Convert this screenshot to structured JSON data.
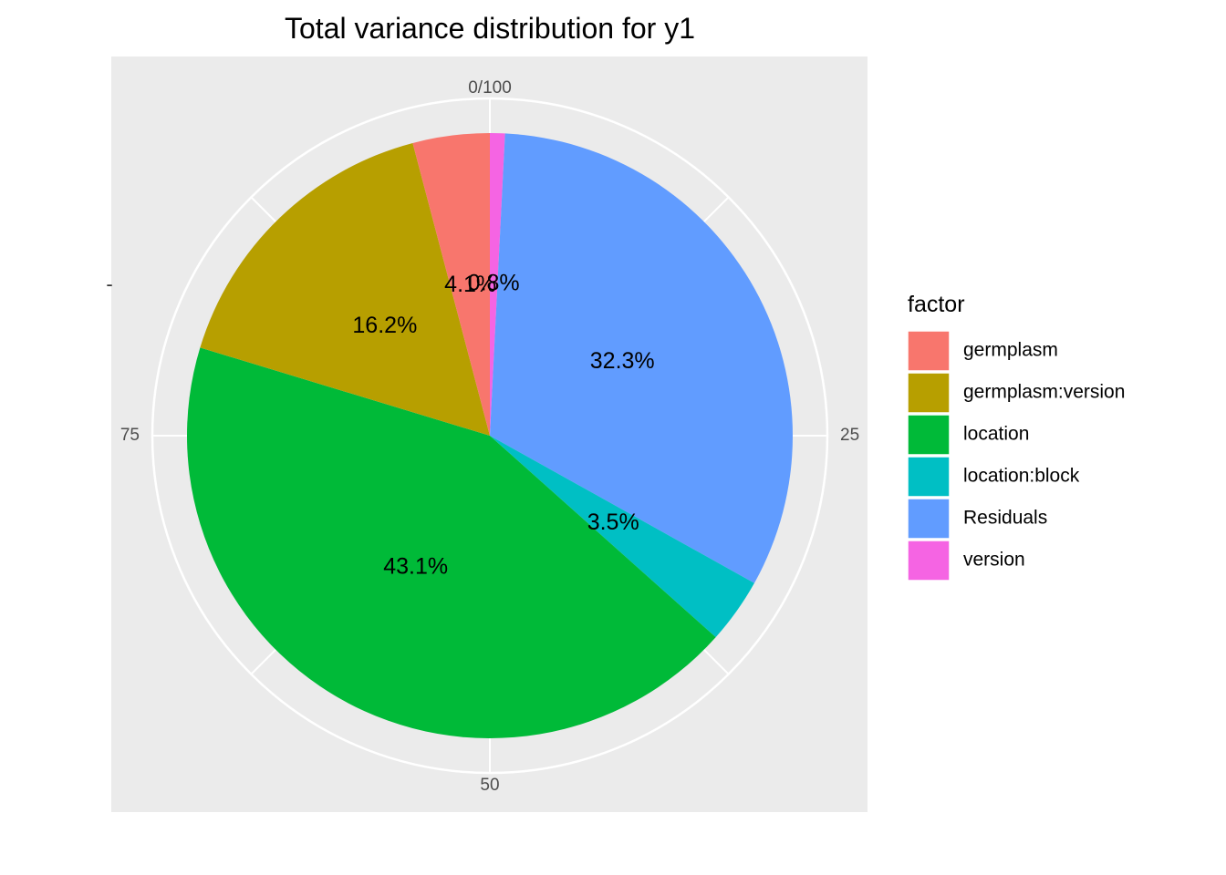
{
  "chart_data": {
    "type": "pie",
    "title": "Total variance distribution for y1",
    "legend": {
      "title": "factor",
      "position": "right"
    },
    "theta_axis": {
      "ticks": [
        "0/100",
        "25",
        "50",
        "75"
      ],
      "tick_values": [
        0,
        25,
        50,
        75
      ]
    },
    "grid": true,
    "y_axis_tick_mark": "-",
    "slices": [
      {
        "name": "germplasm",
        "value": 4.1,
        "label": "4.1%",
        "color": "#F8766D"
      },
      {
        "name": "germplasm:version",
        "value": 16.2,
        "label": "16.2%",
        "color": "#B79F00"
      },
      {
        "name": "location",
        "value": 43.1,
        "label": "43.1%",
        "color": "#00BA38"
      },
      {
        "name": "location:block",
        "value": 3.5,
        "label": "3.5%",
        "color": "#00BFC4"
      },
      {
        "name": "Residuals",
        "value": 32.3,
        "label": "32.3%",
        "color": "#619CFF"
      },
      {
        "name": "version",
        "value": 0.8,
        "label": "0.8%",
        "color": "#F564E3"
      }
    ]
  }
}
